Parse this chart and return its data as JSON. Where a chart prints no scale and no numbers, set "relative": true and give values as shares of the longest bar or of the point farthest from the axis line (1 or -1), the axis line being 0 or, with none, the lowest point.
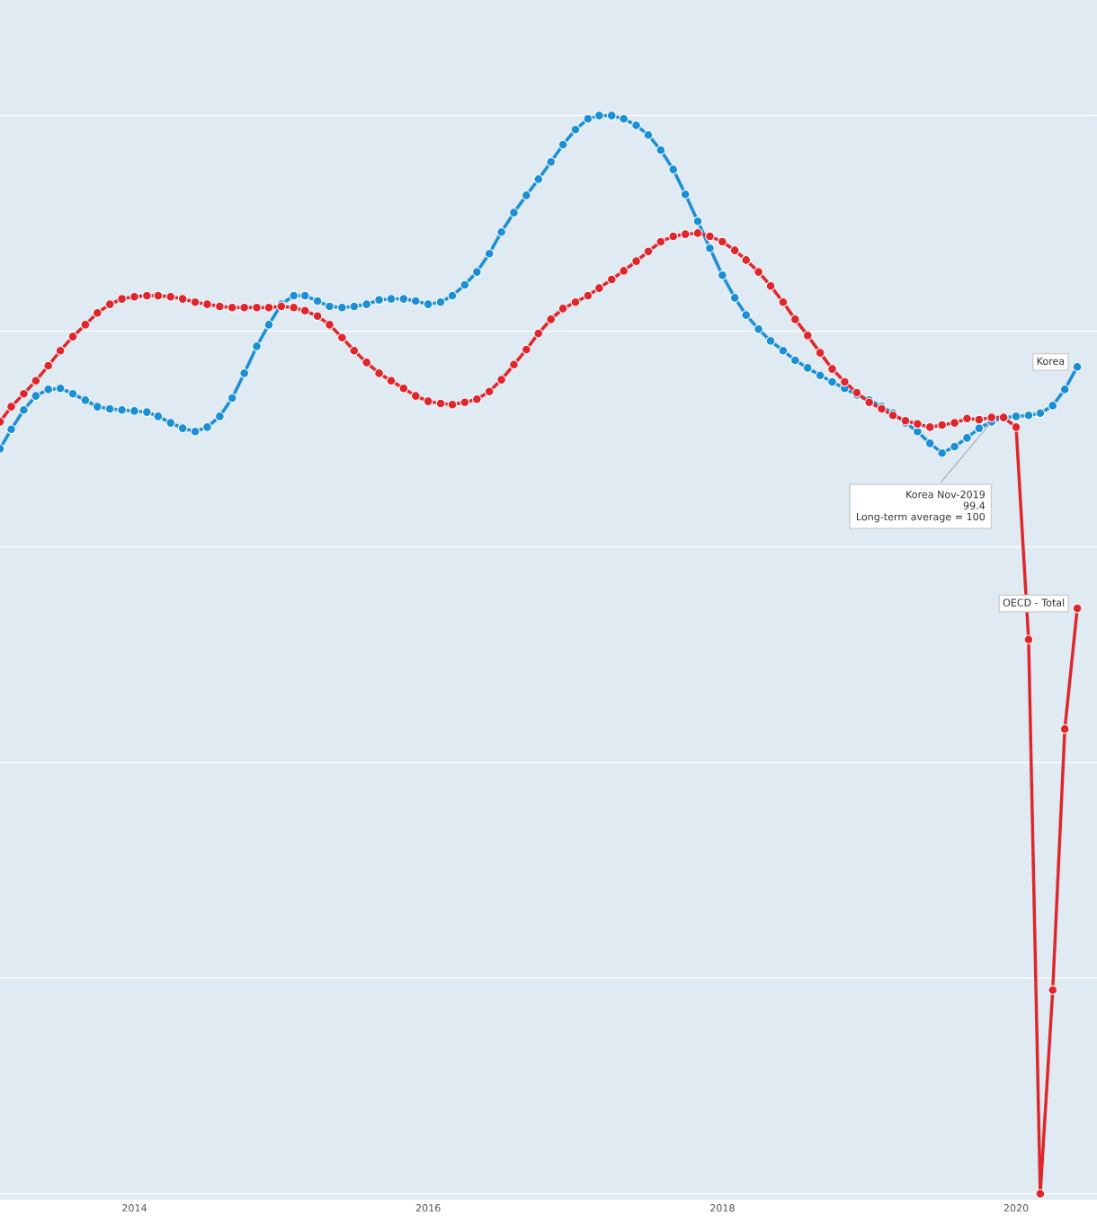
{
  "chart_data": {
    "type": "line",
    "relative": true,
    "grid": "y",
    "legend": false,
    "marker": "circle",
    "line_style": "solid",
    "x": [
      "2013-02",
      "2013-03",
      "2013-04",
      "2013-05",
      "2013-06",
      "2013-07",
      "2013-08",
      "2013-09",
      "2013-10",
      "2013-11",
      "2013-12",
      "2014-01",
      "2014-02",
      "2014-03",
      "2014-04",
      "2014-05",
      "2014-06",
      "2014-07",
      "2014-08",
      "2014-09",
      "2014-10",
      "2014-11",
      "2014-12",
      "2015-01",
      "2015-02",
      "2015-03",
      "2015-04",
      "2015-05",
      "2015-06",
      "2015-07",
      "2015-08",
      "2015-09",
      "2015-10",
      "2015-11",
      "2015-12",
      "2016-01",
      "2016-02",
      "2016-03",
      "2016-04",
      "2016-05",
      "2016-06",
      "2016-07",
      "2016-08",
      "2016-09",
      "2016-10",
      "2016-11",
      "2016-12",
      "2017-01",
      "2017-02",
      "2017-03",
      "2017-04",
      "2017-05",
      "2017-06",
      "2017-07",
      "2017-08",
      "2017-09",
      "2017-10",
      "2017-11",
      "2017-12",
      "2018-01",
      "2018-02",
      "2018-03",
      "2018-04",
      "2018-05",
      "2018-06",
      "2018-07",
      "2018-08",
      "2018-09",
      "2018-10",
      "2018-11",
      "2018-12",
      "2019-01",
      "2019-02",
      "2019-03",
      "2019-04",
      "2019-05",
      "2019-06",
      "2019-07",
      "2019-08",
      "2019-09",
      "2019-10",
      "2019-11",
      "2019-12",
      "2020-01",
      "2020-02",
      "2020-03",
      "2020-04",
      "2020-05",
      "2020-06"
    ],
    "xlim": [
      "2013-02",
      "2020-07-20"
    ],
    "xticks": [
      {
        "value": "2014-01",
        "label": "2014"
      },
      {
        "value": "2016-01",
        "label": "2016"
      },
      {
        "value": "2018-01",
        "label": "2018"
      },
      {
        "value": "2020-01",
        "label": "2020"
      }
    ],
    "series": [
      {
        "name": "Korea",
        "color": "#1b8fd6",
        "values": [
          0.691,
          0.709,
          0.727,
          0.74,
          0.746,
          0.747,
          0.742,
          0.736,
          0.73,
          0.728,
          0.727,
          0.726,
          0.725,
          0.721,
          0.715,
          0.71,
          0.707,
          0.711,
          0.721,
          0.738,
          0.761,
          0.786,
          0.806,
          0.825,
          0.833,
          0.833,
          0.828,
          0.823,
          0.822,
          0.823,
          0.825,
          0.829,
          0.83,
          0.83,
          0.828,
          0.825,
          0.827,
          0.833,
          0.843,
          0.855,
          0.872,
          0.892,
          0.91,
          0.926,
          0.941,
          0.957,
          0.973,
          0.987,
          0.997,
          1.0,
          1.0,
          0.997,
          0.991,
          0.982,
          0.968,
          0.95,
          0.927,
          0.902,
          0.877,
          0.852,
          0.831,
          0.815,
          0.802,
          0.791,
          0.782,
          0.773,
          0.766,
          0.759,
          0.753,
          0.747,
          0.741,
          0.736,
          0.73,
          0.724,
          0.715,
          0.707,
          0.696,
          0.687,
          0.693,
          0.701,
          0.71,
          0.716,
          0.72,
          0.721,
          0.722,
          0.724,
          0.731,
          0.746,
          0.767
        ]
      },
      {
        "name": "OECD - Total",
        "color": "#e0262d",
        "values": [
          0.716,
          0.73,
          0.742,
          0.754,
          0.768,
          0.782,
          0.795,
          0.806,
          0.817,
          0.825,
          0.83,
          0.832,
          0.833,
          0.833,
          0.832,
          0.83,
          0.827,
          0.825,
          0.823,
          0.822,
          0.822,
          0.822,
          0.822,
          0.823,
          0.822,
          0.819,
          0.814,
          0.806,
          0.794,
          0.782,
          0.771,
          0.761,
          0.754,
          0.747,
          0.74,
          0.735,
          0.733,
          0.732,
          0.734,
          0.737,
          0.744,
          0.755,
          0.769,
          0.783,
          0.798,
          0.811,
          0.821,
          0.827,
          0.833,
          0.84,
          0.848,
          0.856,
          0.865,
          0.874,
          0.883,
          0.888,
          0.89,
          0.891,
          0.888,
          0.883,
          0.875,
          0.866,
          0.855,
          0.842,
          0.827,
          0.811,
          0.796,
          0.78,
          0.765,
          0.753,
          0.743,
          0.734,
          0.728,
          0.722,
          0.717,
          0.714,
          0.711,
          0.713,
          0.715,
          0.719,
          0.718,
          0.72,
          0.72,
          0.711,
          0.514,
          0.0,
          0.189,
          0.431,
          0.543
        ]
      }
    ],
    "annotations": [
      {
        "text": "Korea Nov-2019\n99.4\nLong-term average = 100",
        "x": "2019-11",
        "y": 0.716
      }
    ]
  }
}
